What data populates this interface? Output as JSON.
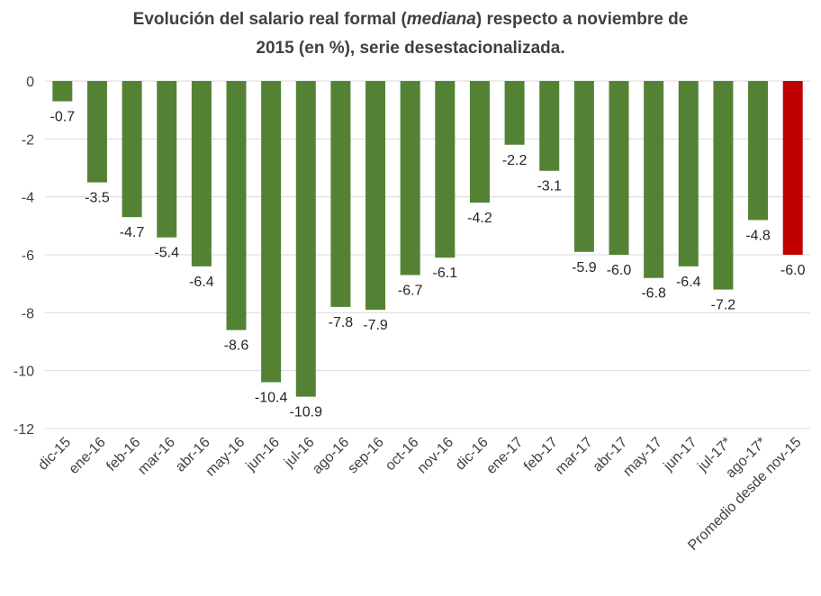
{
  "chart_data": {
    "type": "bar",
    "title_parts": {
      "before": "Evolución del salario real formal (",
      "italic": "mediana",
      "after": ") respecto a noviembre de",
      "line2": "2015 (en %), serie desestacionalizada."
    },
    "categories": [
      "dic-15",
      "ene-16",
      "feb-16",
      "mar-16",
      "abr-16",
      "may-16",
      "jun-16",
      "jul-16",
      "ago-16",
      "sep-16",
      "oct-16",
      "nov-16",
      "dic-16",
      "ene-17",
      "feb-17",
      "mar-17",
      "abr-17",
      "may-17",
      "jun-17",
      "jul-17*",
      "ago-17*",
      "Promedio desde nov-15"
    ],
    "values": [
      -0.7,
      -3.5,
      -4.7,
      -5.4,
      -6.4,
      -8.6,
      -10.4,
      -10.9,
      -7.8,
      -7.9,
      -6.7,
      -6.1,
      -4.2,
      -2.2,
      -3.1,
      -5.9,
      -6.0,
      -6.8,
      -6.4,
      -7.2,
      -4.8,
      -6.0
    ],
    "value_labels": [
      "-0.7",
      "-3.5",
      "-4.7",
      "-5.4",
      "-6.4",
      "-8.6",
      "-10.4",
      "-10.9",
      "-7.8",
      "-7.9",
      "-6.7",
      "-6.1",
      "-4.2",
      "-2.2",
      "-3.1",
      "-5.9",
      "-6.0",
      "-6.8",
      "-6.4",
      "-7.2",
      "-4.8",
      "-6.0"
    ],
    "highlight_index": 21,
    "ylim": [
      -12,
      0
    ],
    "yticks": [
      0,
      -2,
      -4,
      -6,
      -8,
      -10,
      -12
    ],
    "ytick_labels": [
      "0",
      "-2",
      "-4",
      "-6",
      "-8",
      "-10",
      "-12"
    ],
    "grid": true,
    "colors": {
      "bar": "#548235",
      "highlight": "#C00000",
      "grid": "#D9D9D9"
    }
  }
}
